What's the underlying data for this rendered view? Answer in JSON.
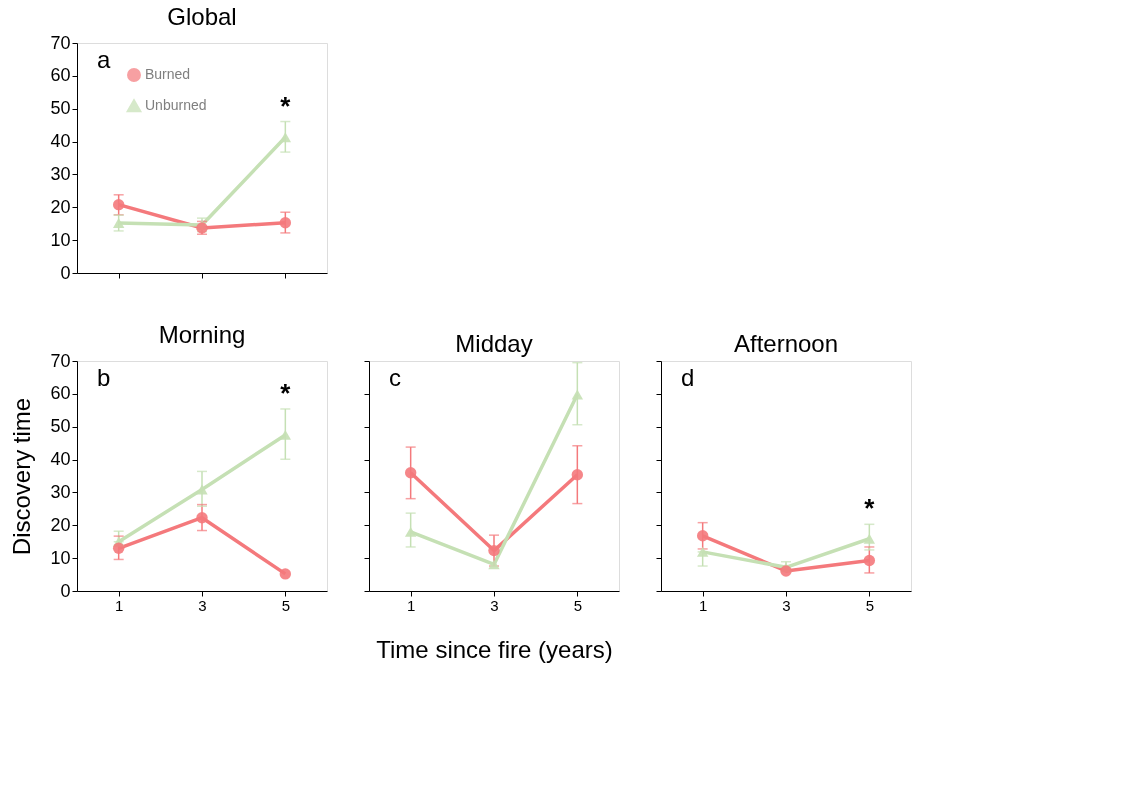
{
  "chart_data": [
    {
      "type": "line",
      "title": "Global",
      "categories": [
        "1",
        "3",
        "5"
      ],
      "ylim": [
        0,
        70
      ],
      "yticks": [
        0,
        10,
        20,
        30,
        40,
        50,
        60,
        70
      ],
      "tick_labels": "y",
      "grid": false,
      "legend": "top left",
      "annotations": [
        "a",
        {
          "text": "*",
          "x": "5",
          "y": 46.1
        }
      ],
      "series": [
        {
          "name": "Burned",
          "color": "#f4797c",
          "marker": "circle",
          "values": [
            20.8,
            13.7,
            15.3
          ],
          "errors": [
            [
              17.7,
              23.8
            ],
            [
              11.8,
              15.7
            ],
            [
              12.2,
              18.5
            ]
          ]
        },
        {
          "name": "Unburned",
          "color": "#c5e0b4",
          "marker": "triangle",
          "values": [
            15.2,
            14.6,
            41.3
          ],
          "errors": [
            [
              12.8,
              17.6
            ],
            [
              12.6,
              16.7
            ],
            [
              36.8,
              46.1
            ]
          ]
        }
      ]
    },
    {
      "type": "line",
      "title": "Morning",
      "ylabel": "Discovery time",
      "categories": [
        "1",
        "3",
        "5"
      ],
      "ylim": [
        0,
        70
      ],
      "yticks": [
        0,
        10,
        20,
        30,
        40,
        50,
        60,
        70
      ],
      "grid": false,
      "annotations": [
        "b",
        {
          "text": "*",
          "x": "5",
          "y": 55.4
        }
      ],
      "series": [
        {
          "name": "Burned",
          "color": "#f4797c",
          "marker": "circle",
          "values": [
            13.0,
            22.3,
            5.2
          ],
          "errors": [
            [
              9.6,
              16.7
            ],
            [
              18.4,
              26.3
            ],
            null
          ]
        },
        {
          "name": "Unburned",
          "color": "#c5e0b4",
          "marker": "triangle",
          "values": [
            15.0,
            30.9,
            47.5
          ],
          "errors": [
            [
              15.0,
              18.2
            ],
            [
              25.8,
              36.4
            ],
            [
              40.1,
              55.4
            ]
          ]
        }
      ]
    },
    {
      "type": "line",
      "title": "Midday",
      "xlabel": "Time since fire (years)",
      "categories": [
        "1",
        "3",
        "5"
      ],
      "ylim": [
        0,
        70
      ],
      "yticks": [
        0,
        10,
        20,
        30,
        40,
        50,
        60,
        70
      ],
      "tick_labels": "x",
      "grid": false,
      "annotations": [
        "c"
      ],
      "series": [
        {
          "name": "Burned",
          "color": "#f4797c",
          "marker": "circle",
          "values": [
            36.0,
            12.3,
            35.4
          ],
          "errors": [
            [
              28.1,
              43.8
            ],
            [
              7.6,
              17.0
            ],
            [
              26.6,
              44.2
            ]
          ]
        },
        {
          "name": "Unburned",
          "color": "#c5e0b4",
          "marker": "triangle",
          "values": [
            18.0,
            8.1,
            59.8
          ],
          "errors": [
            [
              13.4,
              23.7
            ],
            null,
            [
              50.6,
              69.5
            ]
          ]
        }
      ]
    },
    {
      "type": "line",
      "title": "Afternoon",
      "categories": [
        "1",
        "3",
        "5"
      ],
      "ylim": [
        0,
        70
      ],
      "yticks": [
        0,
        10,
        20,
        30,
        40,
        50,
        60,
        70
      ],
      "tick_labels": "x",
      "grid": false,
      "annotations": [
        "d",
        {
          "text": "*",
          "x": "5",
          "y": 20.3
        }
      ],
      "series": [
        {
          "name": "Burned",
          "color": "#f4797c",
          "marker": "circle",
          "values": [
            16.8,
            6.1,
            9.3
          ],
          "errors": [
            [
              12.8,
              20.8
            ],
            null,
            [
              5.5,
              13.4
            ]
          ]
        },
        {
          "name": "Unburned",
          "color": "#c5e0b4",
          "marker": "triangle",
          "values": [
            11.9,
            7.2,
            15.9
          ],
          "errors": [
            [
              7.6,
              11.9
            ],
            [
              7.2,
              8.9
            ],
            [
              12.5,
              20.3
            ]
          ]
        }
      ]
    }
  ]
}
